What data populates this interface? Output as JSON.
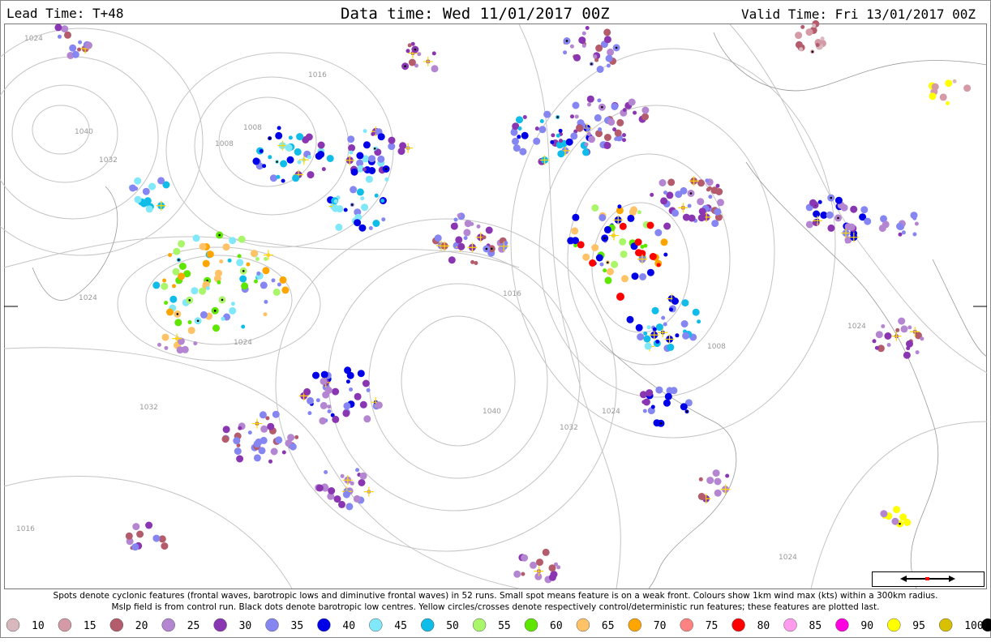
{
  "header": {
    "lead_time": "Lead Time: T+48",
    "data_time": "Data time:  Wed 11/01/2017 00Z",
    "valid_time": "Valid Time: Fri 13/01/2017 00Z"
  },
  "map": {
    "isobar_labels": [
      "1024",
      "1016",
      "1040",
      "1032",
      "1008",
      "1008",
      "1024",
      "1024",
      "1032",
      "1016",
      "1040",
      "1032",
      "1024",
      "1008",
      "1024",
      "1016",
      "1024"
    ]
  },
  "caption": {
    "line1": "Spots denote cyclonic features (frontal waves, barotropic lows and diminutive frontal waves) in 52 runs. Small spot means feature is on a weak front. Colours show 1km wind max (kts) within a 300km radius.",
    "line2": "Mslp field is from control run. Black dots denote barotropic low centres. Yellow circles/crosses denote respectively control/deterministic run features; these features are plotted last."
  },
  "legend": {
    "items": [
      {
        "label": "10",
        "color": "#d8b8bc"
      },
      {
        "label": "15",
        "color": "#d49aa6"
      },
      {
        "label": "20",
        "color": "#b45c6c"
      },
      {
        "label": "25",
        "color": "#b486d2"
      },
      {
        "label": "30",
        "color": "#8a36b2"
      },
      {
        "label": "35",
        "color": "#8686f2"
      },
      {
        "label": "40",
        "color": "#0000e8"
      },
      {
        "label": "45",
        "color": "#80e8f8"
      },
      {
        "label": "50",
        "color": "#10bce8"
      },
      {
        "label": "55",
        "color": "#aaf66a"
      },
      {
        "label": "60",
        "color": "#5ee600"
      },
      {
        "label": "65",
        "color": "#ffc266"
      },
      {
        "label": "70",
        "color": "#ffa500"
      },
      {
        "label": "75",
        "color": "#ff8282"
      },
      {
        "label": "80",
        "color": "#ff0000"
      },
      {
        "label": "85",
        "color": "#ff9cee"
      },
      {
        "label": "90",
        "color": "#ff00e0"
      },
      {
        "label": "95",
        "color": "#ffff00"
      },
      {
        "label": "100",
        "color": "#d6c000"
      }
    ],
    "last_color": "#000000"
  }
}
